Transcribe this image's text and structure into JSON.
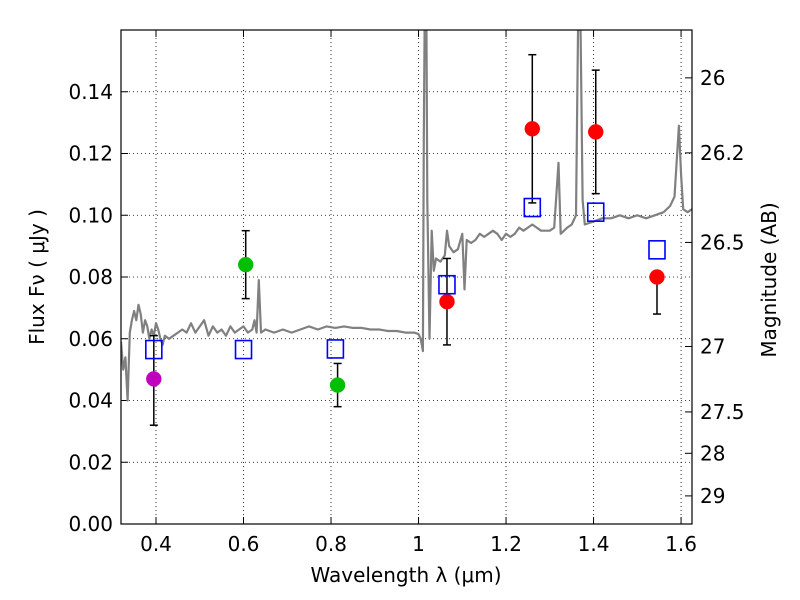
{
  "chart_data": {
    "type": "scatter",
    "xlabel": "Wavelength  λ (μm)",
    "ylabel": "Flux  Fν  ( μJy )",
    "ylabel_right": "Magnitude (AB)",
    "xlim": [
      0.32,
      1.625
    ],
    "ylim": [
      0.0,
      0.16
    ],
    "grid": true,
    "x_ticks": [
      0.4,
      0.6,
      0.8,
      1.0,
      1.2,
      1.4,
      1.6
    ],
    "x_tick_labels": [
      "0.4",
      "0.6",
      "0.8",
      "1",
      "1.2",
      "1.4",
      "1.6"
    ],
    "y_ticks": [
      0.0,
      0.02,
      0.04,
      0.06,
      0.08,
      0.1,
      0.12,
      0.14
    ],
    "y_tick_labels": [
      "0.00",
      "0.02",
      "0.04",
      "0.06",
      "0.08",
      "0.10",
      "0.12",
      "0.14"
    ],
    "right_ticks": [
      {
        "label": "26",
        "flux": 0.1445
      },
      {
        "label": "26.2",
        "flux": 0.1202
      },
      {
        "label": "26.5",
        "flux": 0.0912
      },
      {
        "label": "27",
        "flux": 0.0575
      },
      {
        "label": "27.5",
        "flux": 0.0363
      },
      {
        "label": "28",
        "flux": 0.0229
      },
      {
        "label": "29",
        "flux": 0.0091
      }
    ],
    "colors": {
      "gray": "#808080",
      "blue": "#0000ff",
      "red": "#ff0000",
      "green": "#00bf00",
      "magenta": "#bf00bf",
      "black": "#000000"
    },
    "observed": [
      {
        "x": 0.395,
        "y": 0.047,
        "yerr_low": 0.032,
        "yerr_high": 0.061,
        "color": "#bf00bf"
      },
      {
        "x": 0.605,
        "y": 0.084,
        "yerr_low": 0.073,
        "yerr_high": 0.095,
        "color": "#00bf00"
      },
      {
        "x": 0.815,
        "y": 0.045,
        "yerr_low": 0.038,
        "yerr_high": 0.052,
        "color": "#00bf00"
      },
      {
        "x": 1.065,
        "y": 0.072,
        "yerr_low": 0.058,
        "yerr_high": 0.086,
        "color": "#ff0000"
      },
      {
        "x": 1.26,
        "y": 0.128,
        "yerr_low": 0.104,
        "yerr_high": 0.152,
        "color": "#ff0000"
      },
      {
        "x": 1.405,
        "y": 0.127,
        "yerr_low": 0.107,
        "yerr_high": 0.147,
        "color": "#ff0000"
      },
      {
        "x": 1.545,
        "y": 0.08,
        "yerr_low": 0.068,
        "yerr_high": 0.0805,
        "color": "#ff0000"
      }
    ],
    "model_points": [
      {
        "x": 0.395,
        "y": 0.0565
      },
      {
        "x": 0.6,
        "y": 0.0565
      },
      {
        "x": 0.81,
        "y": 0.0567
      },
      {
        "x": 1.065,
        "y": 0.0775
      },
      {
        "x": 1.26,
        "y": 0.1025
      },
      {
        "x": 1.405,
        "y": 0.101
      },
      {
        "x": 1.545,
        "y": 0.0888
      }
    ],
    "spectrum": [
      [
        0.32,
        0.059
      ],
      [
        0.325,
        0.05
      ],
      [
        0.33,
        0.054
      ],
      [
        0.335,
        0.04
      ],
      [
        0.34,
        0.062
      ],
      [
        0.345,
        0.066
      ],
      [
        0.35,
        0.069
      ],
      [
        0.355,
        0.066
      ],
      [
        0.36,
        0.071
      ],
      [
        0.365,
        0.068
      ],
      [
        0.37,
        0.062
      ],
      [
        0.375,
        0.066
      ],
      [
        0.38,
        0.064
      ],
      [
        0.385,
        0.06
      ],
      [
        0.39,
        0.063
      ],
      [
        0.395,
        0.061
      ],
      [
        0.4,
        0.065
      ],
      [
        0.405,
        0.063
      ],
      [
        0.41,
        0.06
      ],
      [
        0.415,
        0.058
      ],
      [
        0.42,
        0.061
      ],
      [
        0.43,
        0.06
      ],
      [
        0.44,
        0.061
      ],
      [
        0.45,
        0.062
      ],
      [
        0.46,
        0.063
      ],
      [
        0.47,
        0.062
      ],
      [
        0.48,
        0.065
      ],
      [
        0.49,
        0.062
      ],
      [
        0.5,
        0.064
      ],
      [
        0.51,
        0.066
      ],
      [
        0.52,
        0.061
      ],
      [
        0.53,
        0.064
      ],
      [
        0.54,
        0.062
      ],
      [
        0.55,
        0.063
      ],
      [
        0.56,
        0.061
      ],
      [
        0.57,
        0.064
      ],
      [
        0.58,
        0.062
      ],
      [
        0.59,
        0.063
      ],
      [
        0.6,
        0.064
      ],
      [
        0.61,
        0.062
      ],
      [
        0.62,
        0.063
      ],
      [
        0.625,
        0.066
      ],
      [
        0.63,
        0.062
      ],
      [
        0.635,
        0.079
      ],
      [
        0.64,
        0.062
      ],
      [
        0.65,
        0.063
      ],
      [
        0.67,
        0.062
      ],
      [
        0.69,
        0.063
      ],
      [
        0.71,
        0.062
      ],
      [
        0.73,
        0.063
      ],
      [
        0.75,
        0.064
      ],
      [
        0.77,
        0.063
      ],
      [
        0.79,
        0.064
      ],
      [
        0.81,
        0.0635
      ],
      [
        0.83,
        0.064
      ],
      [
        0.85,
        0.0635
      ],
      [
        0.87,
        0.0635
      ],
      [
        0.89,
        0.063
      ],
      [
        0.91,
        0.063
      ],
      [
        0.93,
        0.0625
      ],
      [
        0.95,
        0.0625
      ],
      [
        0.97,
        0.062
      ],
      [
        0.99,
        0.062
      ],
      [
        1.0,
        0.0615
      ],
      [
        1.005,
        0.06
      ],
      [
        1.01,
        0.056
      ],
      [
        1.012,
        0.125
      ],
      [
        1.014,
        0.165
      ],
      [
        1.018,
        0.165
      ],
      [
        1.02,
        0.105
      ],
      [
        1.025,
        0.06
      ],
      [
        1.03,
        0.095
      ],
      [
        1.035,
        0.082
      ],
      [
        1.04,
        0.086
      ],
      [
        1.05,
        0.085
      ],
      [
        1.06,
        0.087
      ],
      [
        1.065,
        0.095
      ],
      [
        1.07,
        0.09
      ],
      [
        1.08,
        0.088
      ],
      [
        1.09,
        0.089
      ],
      [
        1.1,
        0.094
      ],
      [
        1.105,
        0.076
      ],
      [
        1.11,
        0.092
      ],
      [
        1.12,
        0.091
      ],
      [
        1.13,
        0.092
      ],
      [
        1.14,
        0.094
      ],
      [
        1.15,
        0.093
      ],
      [
        1.16,
        0.094
      ],
      [
        1.17,
        0.095
      ],
      [
        1.18,
        0.094
      ],
      [
        1.19,
        0.092
      ],
      [
        1.2,
        0.094
      ],
      [
        1.21,
        0.093
      ],
      [
        1.22,
        0.094
      ],
      [
        1.23,
        0.096
      ],
      [
        1.24,
        0.095
      ],
      [
        1.25,
        0.096
      ],
      [
        1.26,
        0.097
      ],
      [
        1.27,
        0.096
      ],
      [
        1.28,
        0.095
      ],
      [
        1.3,
        0.095
      ],
      [
        1.31,
        0.096
      ],
      [
        1.32,
        0.117
      ],
      [
        1.325,
        0.094
      ],
      [
        1.34,
        0.096
      ],
      [
        1.35,
        0.097
      ],
      [
        1.36,
        0.1
      ],
      [
        1.365,
        0.165
      ],
      [
        1.37,
        0.165
      ],
      [
        1.375,
        0.105
      ],
      [
        1.38,
        0.097
      ],
      [
        1.4,
        0.098
      ],
      [
        1.42,
        0.099
      ],
      [
        1.44,
        0.099
      ],
      [
        1.46,
        0.1
      ],
      [
        1.48,
        0.099
      ],
      [
        1.5,
        0.1
      ],
      [
        1.52,
        0.099
      ],
      [
        1.54,
        0.1
      ],
      [
        1.56,
        0.101
      ],
      [
        1.575,
        0.103
      ],
      [
        1.585,
        0.106
      ],
      [
        1.595,
        0.129
      ],
      [
        1.6,
        0.113
      ],
      [
        1.605,
        0.102
      ],
      [
        1.615,
        0.101
      ],
      [
        1.625,
        0.102
      ]
    ]
  }
}
